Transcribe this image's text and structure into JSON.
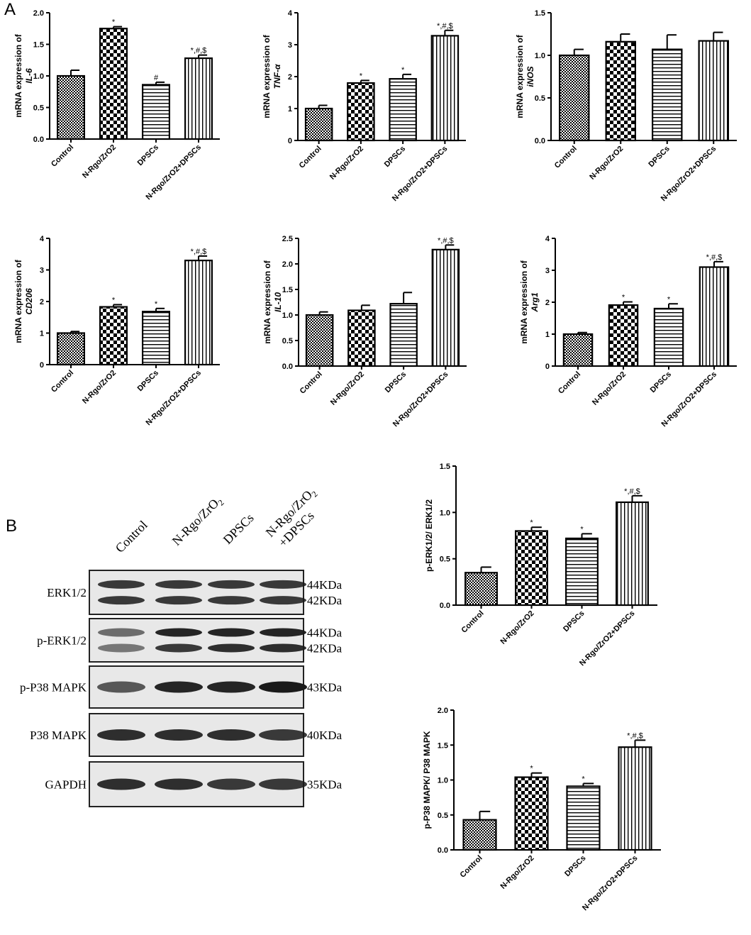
{
  "panels": {
    "a": "A",
    "b": "B"
  },
  "chart_data": [
    {
      "type": "bar",
      "categories": [
        "Control",
        "N-Rgo/ZrO2",
        "DPSCs",
        "N-Rgo/ZrO2+DPSCs"
      ],
      "values": [
        1.0,
        1.75,
        0.86,
        1.28
      ],
      "errors": [
        0.09,
        0.03,
        0.04,
        0.05
      ],
      "annotations": [
        "",
        "*",
        "#",
        "*,#,$"
      ],
      "ylabel_main": "mRNA expression of",
      "ylabel_gene": "IL-6",
      "ylim": [
        0,
        2.0
      ],
      "yticks": [
        "0.0",
        "0.5",
        "1.0",
        "1.5",
        "2.0"
      ]
    },
    {
      "type": "bar",
      "categories": [
        "Control",
        "N-Rgo/ZrO2",
        "DPSCs",
        "N-Rgo/ZrO2+DPSCs"
      ],
      "values": [
        1.0,
        1.8,
        1.93,
        3.28
      ],
      "errors": [
        0.1,
        0.08,
        0.14,
        0.17
      ],
      "annotations": [
        "",
        "*",
        "*",
        "*,#,$"
      ],
      "ylabel_main": "mRNA expression of",
      "ylabel_gene": "TNF-α",
      "ylim": [
        0,
        4
      ],
      "yticks": [
        "0",
        "1",
        "2",
        "3",
        "4"
      ]
    },
    {
      "type": "bar",
      "categories": [
        "Control",
        "N-Rgo/ZrO2",
        "DPSCs",
        "N-Rgo/ZrO2+DPSCs"
      ],
      "values": [
        1.0,
        1.16,
        1.07,
        1.17
      ],
      "errors": [
        0.07,
        0.09,
        0.17,
        0.1
      ],
      "annotations": [
        "",
        "",
        "",
        ""
      ],
      "ylabel_main": "mRNA expression of",
      "ylabel_gene": "iNOS",
      "ylim": [
        0,
        1.5
      ],
      "yticks": [
        "0.0",
        "0.5",
        "1.0",
        "1.5"
      ]
    },
    {
      "type": "bar",
      "categories": [
        "Control",
        "N-Rgo/ZrO2",
        "DPSCs",
        "N-Rgo/ZrO2+DPSCs"
      ],
      "values": [
        1.0,
        1.83,
        1.68,
        3.3
      ],
      "errors": [
        0.05,
        0.07,
        0.1,
        0.14
      ],
      "annotations": [
        "",
        "*",
        "*",
        "*,#,$"
      ],
      "ylabel_main": "mRNA expression of",
      "ylabel_gene": "CD206",
      "ylim": [
        0,
        4
      ],
      "yticks": [
        "0",
        "1",
        "2",
        "3",
        "4"
      ]
    },
    {
      "type": "bar",
      "categories": [
        "Control",
        "N-Rgo/ZrO2",
        "DPSCs",
        "N-Rgo/ZrO2+DPSCs"
      ],
      "values": [
        1.0,
        1.09,
        1.22,
        2.28
      ],
      "errors": [
        0.06,
        0.1,
        0.22,
        0.09
      ],
      "annotations": [
        "",
        "",
        "",
        "*,#,$"
      ],
      "ylabel_main": "mRNA expression of",
      "ylabel_gene": "IL-10",
      "ylim": [
        0,
        2.5
      ],
      "yticks": [
        "0.0",
        "0.5",
        "1.0",
        "1.5",
        "2.0",
        "2.5"
      ]
    },
    {
      "type": "bar",
      "categories": [
        "Control",
        "N-Rgo/ZrO2",
        "DPSCs",
        "N-Rgo/ZrO2+DPSCs"
      ],
      "values": [
        1.0,
        1.91,
        1.8,
        3.1
      ],
      "errors": [
        0.05,
        0.1,
        0.15,
        0.17
      ],
      "annotations": [
        "",
        "*",
        "*",
        "*,#,$"
      ],
      "ylabel_main": "mRNA expression of",
      "ylabel_gene": "Arg1",
      "ylim": [
        0,
        4
      ],
      "yticks": [
        "0",
        "1",
        "2",
        "3",
        "4"
      ]
    },
    {
      "type": "bar",
      "categories": [
        "Control",
        "N-Rgo/ZrO2",
        "DPSCs",
        "N-Rgo/ZrO2+DPSCs"
      ],
      "values": [
        0.35,
        0.8,
        0.72,
        1.11
      ],
      "errors": [
        0.06,
        0.04,
        0.05,
        0.07
      ],
      "annotations": [
        "",
        "*",
        "*",
        "*,#,$"
      ],
      "ylabel_main": "p-ERK1/2/ ERK1/2",
      "ylabel_gene": "",
      "ylim": [
        0,
        1.5
      ],
      "yticks": [
        "0.0",
        "0.5",
        "1.0",
        "1.5"
      ]
    },
    {
      "type": "bar",
      "categories": [
        "Control",
        "N-Rgo/ZrO2",
        "DPSCs",
        "N-Rgo/ZrO2+DPSCs"
      ],
      "values": [
        0.43,
        1.04,
        0.91,
        1.47
      ],
      "errors": [
        0.12,
        0.06,
        0.04,
        0.1
      ],
      "annotations": [
        "",
        "*",
        "*",
        "*,#,$"
      ],
      "ylabel_main": "p-P38 MAPK/ P38 MAPK",
      "ylabel_gene": "",
      "ylim": [
        0,
        2.0
      ],
      "yticks": [
        "0.0",
        "0.5",
        "1.0",
        "1.5",
        "2.0"
      ]
    }
  ],
  "western_blot": {
    "lanes": [
      "Control",
      "N-Rgo/ZrO2",
      "DPSCs",
      "N-Rgo/ZrO2+DPSCs"
    ],
    "lane_labels": [
      "Control",
      "N-Rgo/ZrO",
      "DPSCs",
      "N-Rgo/ZrO",
      "+DPSCs"
    ],
    "subscript": "2",
    "rows": [
      {
        "label": "ERK1/2",
        "kda": [
          "44KDa",
          "42KDa"
        ],
        "doublet": true,
        "intensity_top": [
          0.85,
          0.85,
          0.85,
          0.85
        ],
        "intensity_bottom": [
          0.85,
          0.85,
          0.85,
          0.85
        ]
      },
      {
        "label": "p-ERK1/2",
        "kda": [
          "44KDa",
          "42KDa"
        ],
        "doublet": true,
        "intensity_top": [
          0.6,
          0.95,
          0.95,
          0.95
        ],
        "intensity_bottom": [
          0.55,
          0.85,
          0.9,
          0.9
        ]
      },
      {
        "label": "p-P38 MAPK",
        "kda": [
          "43KDa"
        ],
        "doublet": false,
        "intensity_top": [
          0.7,
          0.95,
          0.95,
          1.0
        ]
      },
      {
        "label": "P38 MAPK",
        "kda": [
          "40KDa"
        ],
        "doublet": false,
        "intensity_top": [
          0.9,
          0.9,
          0.9,
          0.85
        ]
      },
      {
        "label": "GAPDH",
        "kda": [
          "35KDa"
        ],
        "doublet": false,
        "intensity_top": [
          0.9,
          0.9,
          0.85,
          0.85
        ]
      }
    ]
  },
  "colors": {
    "ink": "#000000",
    "band": "#1a1a1a",
    "blot_bg": "#e8e8e8"
  }
}
